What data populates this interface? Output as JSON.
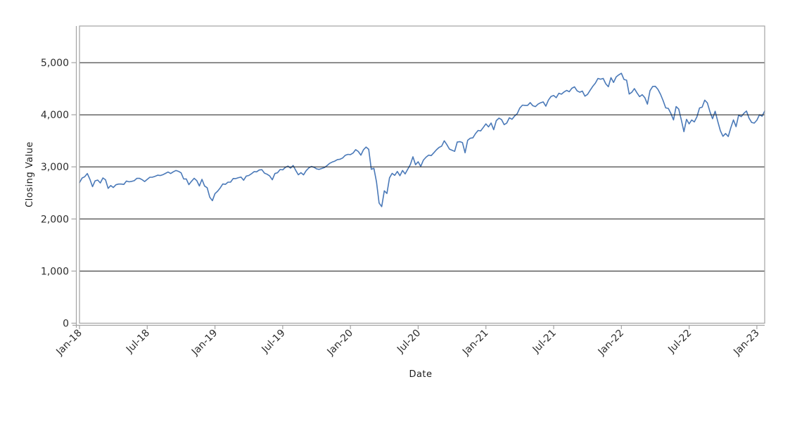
{
  "colors": {
    "line": "#4a79b8",
    "gridline": "#1a1a1a",
    "frame": "#a3a3a3",
    "tick_text": "#2d2d2d",
    "axis_title_text": "#1c1c1c",
    "background": "#ffffff"
  },
  "chart_data": {
    "type": "line",
    "title": "",
    "xlabel": "Date",
    "ylabel": "Closing Value",
    "grid": "horizontal-only",
    "legend": "none",
    "ylim": [
      0,
      5703
    ],
    "y_ticks": [
      {
        "value": 0,
        "label": "0"
      },
      {
        "value": 1000,
        "label": "1,000"
      },
      {
        "value": 2000,
        "label": "2,000"
      },
      {
        "value": 3000,
        "label": "3,000"
      },
      {
        "value": 4000,
        "label": "4,000"
      },
      {
        "value": 5000,
        "label": "5,000"
      }
    ],
    "x_ticks": [
      {
        "label": "Jan-18",
        "week": 0
      },
      {
        "label": "Jul-18",
        "week": 26
      },
      {
        "label": "Jan-19",
        "week": 52
      },
      {
        "label": "Jul-19",
        "week": 78
      },
      {
        "label": "Jan-20",
        "week": 104
      },
      {
        "label": "Jul-20",
        "week": 130
      },
      {
        "label": "Jan-21",
        "week": 156
      },
      {
        "label": "Jul-21",
        "week": 182
      },
      {
        "label": "Jan-22",
        "week": 208
      },
      {
        "label": "Jul-22",
        "week": 234
      },
      {
        "label": "Jan-23",
        "week": 260
      }
    ],
    "series": [
      {
        "name": "Closing Value",
        "color": "#4a79b8",
        "cadence": "weekly closes, Jan 2018 - Jan 2023",
        "values": [
          2696,
          2786,
          2810,
          2873,
          2762,
          2620,
          2732,
          2747,
          2691,
          2787,
          2752,
          2588,
          2641,
          2604,
          2656,
          2670,
          2670,
          2663,
          2728,
          2713,
          2721,
          2735,
          2779,
          2780,
          2755,
          2718,
          2760,
          2801,
          2802,
          2819,
          2840,
          2833,
          2850,
          2875,
          2901,
          2872,
          2905,
          2930,
          2914,
          2886,
          2767,
          2768,
          2659,
          2723,
          2781,
          2736,
          2633,
          2760,
          2633,
          2600,
          2417,
          2351,
          2486,
          2532,
          2596,
          2671,
          2665,
          2706,
          2708,
          2776,
          2775,
          2793,
          2803,
          2743,
          2822,
          2834,
          2867,
          2907,
          2905,
          2940,
          2946,
          2881,
          2859,
          2826,
          2752,
          2873,
          2887,
          2950,
          2942,
          2990,
          3014,
          2977,
          3026,
          2932,
          2848,
          2889,
          2847,
          2926,
          2979,
          3007,
          2992,
          2962,
          2952,
          2970,
          2986,
          3023,
          3067,
          3093,
          3110,
          3140,
          3146,
          3169,
          3221,
          3240,
          3235,
          3265,
          3330,
          3295,
          3225,
          3328,
          3380,
          3338,
          2954,
          2972,
          2711,
          2305,
          2237,
          2541,
          2489,
          2790,
          2875,
          2837,
          2912,
          2830,
          2930,
          2864,
          2955,
          3044,
          3194,
          3041,
          3098,
          3009,
          3130,
          3185,
          3225,
          3216,
          3271,
          3327,
          3373,
          3397,
          3500,
          3427,
          3341,
          3319,
          3298,
          3477,
          3484,
          3465,
          3270,
          3509,
          3550,
          3558,
          3638,
          3699,
          3690,
          3756,
          3825,
          3768,
          3841,
          3714,
          3887,
          3935,
          3907,
          3811,
          3842,
          3943,
          3913,
          3975,
          4020,
          4129,
          4185,
          4180,
          4181,
          4233,
          4174,
          4156,
          4204,
          4230,
          4247,
          4166,
          4281,
          4352,
          4370,
          4327,
          4412,
          4395,
          4437,
          4468,
          4442,
          4509,
          4535,
          4459,
          4433,
          4455,
          4357,
          4391,
          4471,
          4545,
          4605,
          4698,
          4683,
          4698,
          4595,
          4538,
          4712,
          4621,
          4726,
          4766,
          4796,
          4677,
          4663,
          4398,
          4432,
          4501,
          4419,
          4348,
          4385,
          4329,
          4204,
          4463,
          4543,
          4546,
          4488,
          4393,
          4272,
          4132,
          4123,
          4024,
          3901,
          4158,
          4109,
          3901,
          3675,
          3912,
          3825,
          3899,
          3863,
          3962,
          4130,
          4145,
          4280,
          4228,
          4058,
          3924,
          4067,
          3873,
          3693,
          3586,
          3640,
          3583,
          3753,
          3901,
          3771,
          3993,
          3965,
          4026,
          4072,
          3934,
          3852,
          3840,
          3895,
          3999,
          3973,
          4071
        ]
      }
    ]
  }
}
